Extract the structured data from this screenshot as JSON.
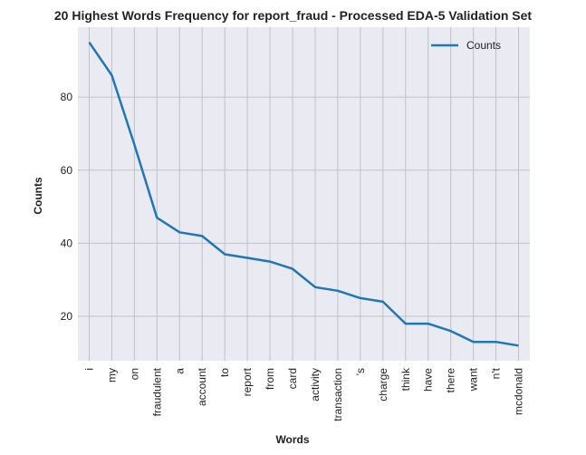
{
  "chart_data": {
    "type": "line",
    "title": "20 Highest Words Frequency for report_fraud - Processed EDA-5 Validation Set",
    "xlabel": "Words",
    "ylabel": "Counts",
    "categories": [
      "i",
      "my",
      "on",
      "fraudulent",
      "a",
      "account",
      "to",
      "report",
      "from",
      "card",
      "activity",
      "transaction",
      "'s",
      "charge",
      "think",
      "have",
      "there",
      "want",
      "n't",
      "mcdonald"
    ],
    "series": [
      {
        "name": "Counts",
        "values": [
          95,
          86,
          67,
          47,
          43,
          42,
          37,
          36,
          35,
          33,
          28,
          27,
          25,
          24,
          18,
          18,
          16,
          13,
          13,
          12
        ],
        "color": "#1f77b4"
      }
    ],
    "yticks": [
      20,
      40,
      60,
      80
    ],
    "ylim": [
      7.85,
      99.15
    ],
    "grid": true,
    "legend_position": "top-right",
    "background_color": "#eaeaf2",
    "grid_color": "#c0c0c8"
  }
}
